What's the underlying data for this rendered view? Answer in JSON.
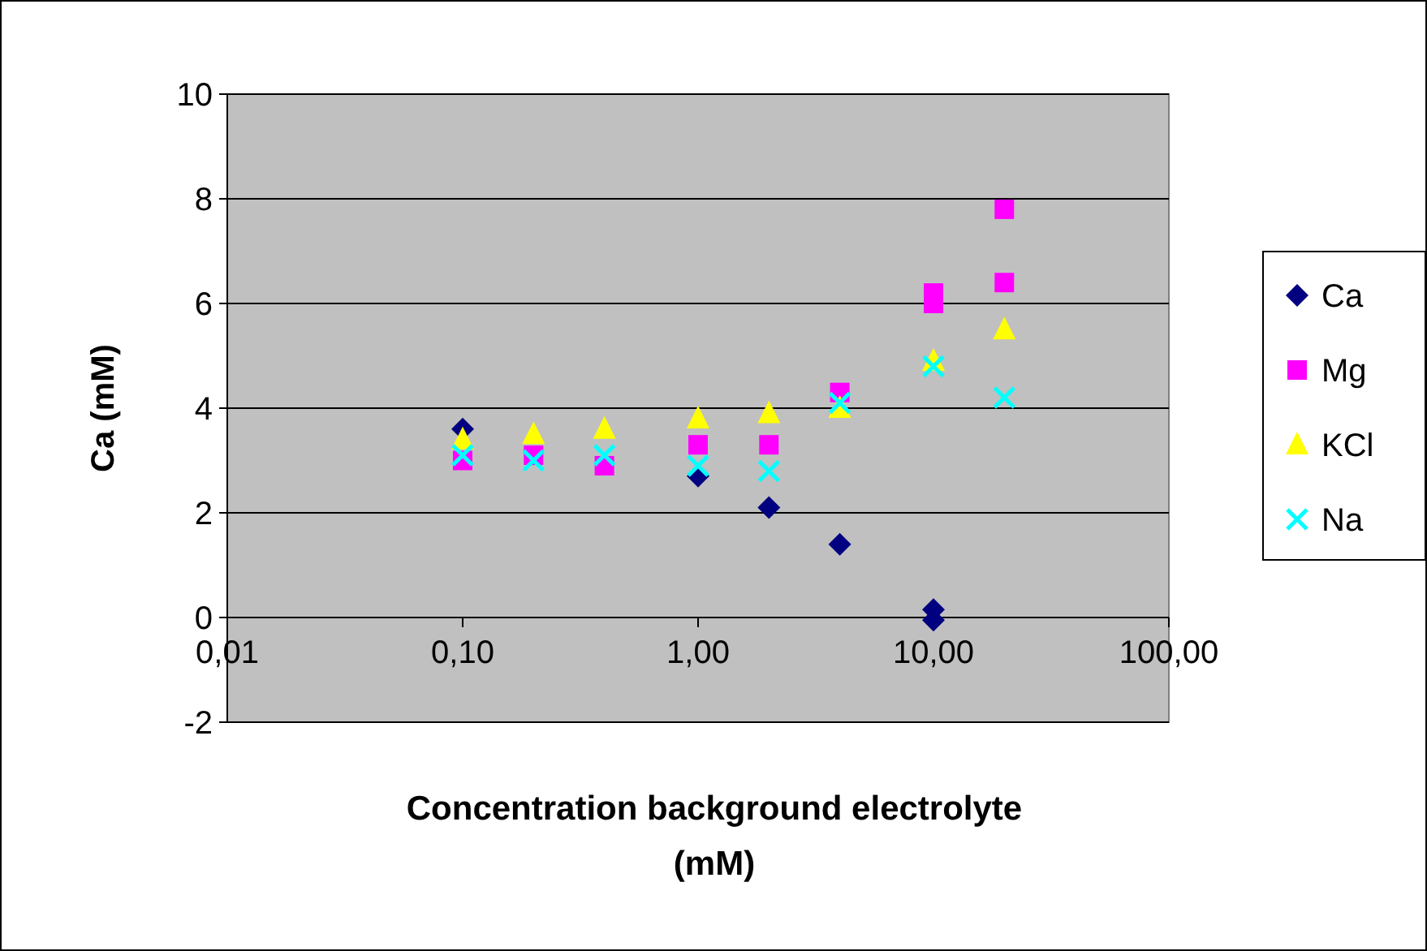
{
  "chart_data": {
    "type": "scatter",
    "xlabel": "Concentration background electrolyte (mM)",
    "ylabel": "Ca (mM)",
    "log": "x",
    "xlim": [
      0.01,
      100
    ],
    "xticks": [
      {
        "value": 0.01,
        "label": "0,01"
      },
      {
        "value": 0.1,
        "label": "0,10"
      },
      {
        "value": 1,
        "label": "1,00"
      },
      {
        "value": 10,
        "label": "10,00"
      },
      {
        "value": 100,
        "label": "100,00"
      }
    ],
    "ylim": [
      -2,
      10
    ],
    "yticks": [
      -2,
      0,
      2,
      4,
      6,
      8,
      10
    ],
    "grid": "y",
    "legend": "right",
    "series": [
      {
        "name": "Ca",
        "color": "#000080",
        "marker": "diamond",
        "x": [
          0.1,
          1,
          2,
          4,
          10,
          10
        ],
        "values": [
          3.6,
          2.7,
          2.1,
          1.4,
          0.15,
          -0.05
        ]
      },
      {
        "name": "Mg",
        "color": "#ff00ff",
        "marker": "square",
        "x": [
          0.1,
          0.2,
          0.4,
          1,
          2,
          4,
          10,
          10,
          20,
          20
        ],
        "values": [
          3.0,
          3.1,
          2.9,
          3.3,
          3.3,
          4.3,
          6.2,
          6.0,
          7.8,
          6.4
        ]
      },
      {
        "name": "KCl",
        "color": "#ffff00",
        "marker": "triangle",
        "x": [
          0.1,
          0.2,
          0.4,
          1,
          2,
          4,
          10,
          20
        ],
        "values": [
          3.4,
          3.5,
          3.6,
          3.8,
          3.9,
          4.0,
          4.9,
          5.5
        ]
      },
      {
        "name": "Na",
        "color": "#00ffff",
        "marker": "cross",
        "x": [
          0.1,
          0.2,
          0.4,
          1,
          2,
          4,
          10,
          20
        ],
        "values": [
          3.1,
          3.0,
          3.1,
          2.9,
          2.8,
          4.1,
          4.8,
          4.2
        ]
      }
    ]
  }
}
